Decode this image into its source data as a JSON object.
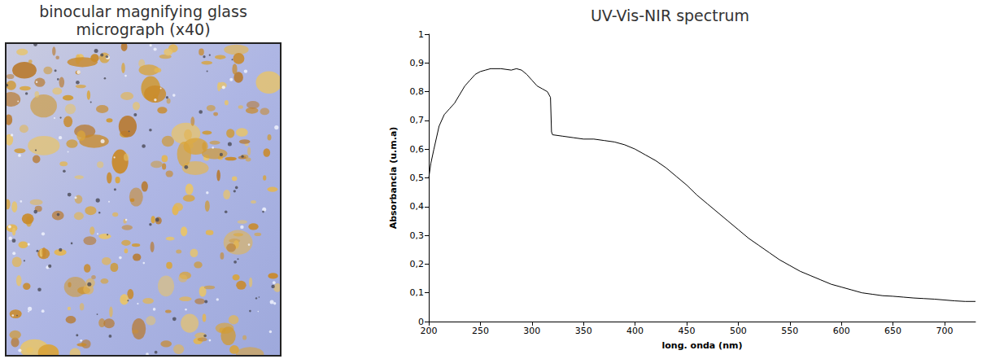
{
  "image_panel": {
    "title": "binocular magnifying glass micrograph (x40)"
  },
  "chart_data": {
    "type": "line",
    "title": "UV-Vis-NIR spectrum",
    "x_label": "long. onda (nm)",
    "y_label": "Absorbancia (u.m.a)",
    "x": [
      200,
      202,
      205,
      210,
      215,
      220,
      225,
      230,
      235,
      240,
      245,
      250,
      255,
      260,
      270,
      280,
      285,
      290,
      295,
      300,
      305,
      310,
      315,
      318,
      319,
      320,
      330,
      340,
      350,
      360,
      370,
      380,
      390,
      400,
      410,
      420,
      430,
      440,
      450,
      460,
      470,
      480,
      490,
      500,
      510,
      520,
      530,
      540,
      550,
      560,
      570,
      580,
      590,
      600,
      610,
      620,
      630,
      640,
      650,
      660,
      670,
      680,
      690,
      700,
      710,
      720,
      730
    ],
    "values": [
      0.5,
      0.55,
      0.6,
      0.68,
      0.72,
      0.74,
      0.76,
      0.79,
      0.82,
      0.84,
      0.86,
      0.87,
      0.875,
      0.88,
      0.88,
      0.875,
      0.88,
      0.875,
      0.86,
      0.84,
      0.82,
      0.81,
      0.8,
      0.78,
      0.66,
      0.65,
      0.645,
      0.64,
      0.635,
      0.635,
      0.63,
      0.625,
      0.615,
      0.6,
      0.58,
      0.56,
      0.535,
      0.505,
      0.475,
      0.44,
      0.41,
      0.38,
      0.35,
      0.32,
      0.29,
      0.265,
      0.24,
      0.215,
      0.195,
      0.175,
      0.16,
      0.145,
      0.13,
      0.12,
      0.11,
      0.1,
      0.095,
      0.09,
      0.088,
      0.085,
      0.082,
      0.08,
      0.078,
      0.075,
      0.072,
      0.07,
      0.07
    ],
    "color": "#000000",
    "xlim": [
      200,
      730
    ],
    "xticks": [
      200,
      250,
      300,
      350,
      400,
      450,
      500,
      550,
      600,
      650,
      700
    ],
    "ylim": [
      0,
      1
    ],
    "yticks": [
      0,
      {
        "value": 0.1,
        "label": "0,1"
      },
      {
        "value": 0.2,
        "label": "0,2"
      },
      {
        "value": 0.3,
        "label": "0,3"
      },
      {
        "value": 0.4,
        "label": "0,4"
      },
      {
        "value": 0.5,
        "label": "0,5"
      },
      {
        "value": 0.6,
        "label": "0,6"
      },
      {
        "value": 0.7,
        "label": "0,7"
      },
      {
        "value": 0.8,
        "label": "0,8"
      },
      {
        "value": 0.9,
        "label": "0,9"
      },
      1
    ],
    "grid": false
  }
}
